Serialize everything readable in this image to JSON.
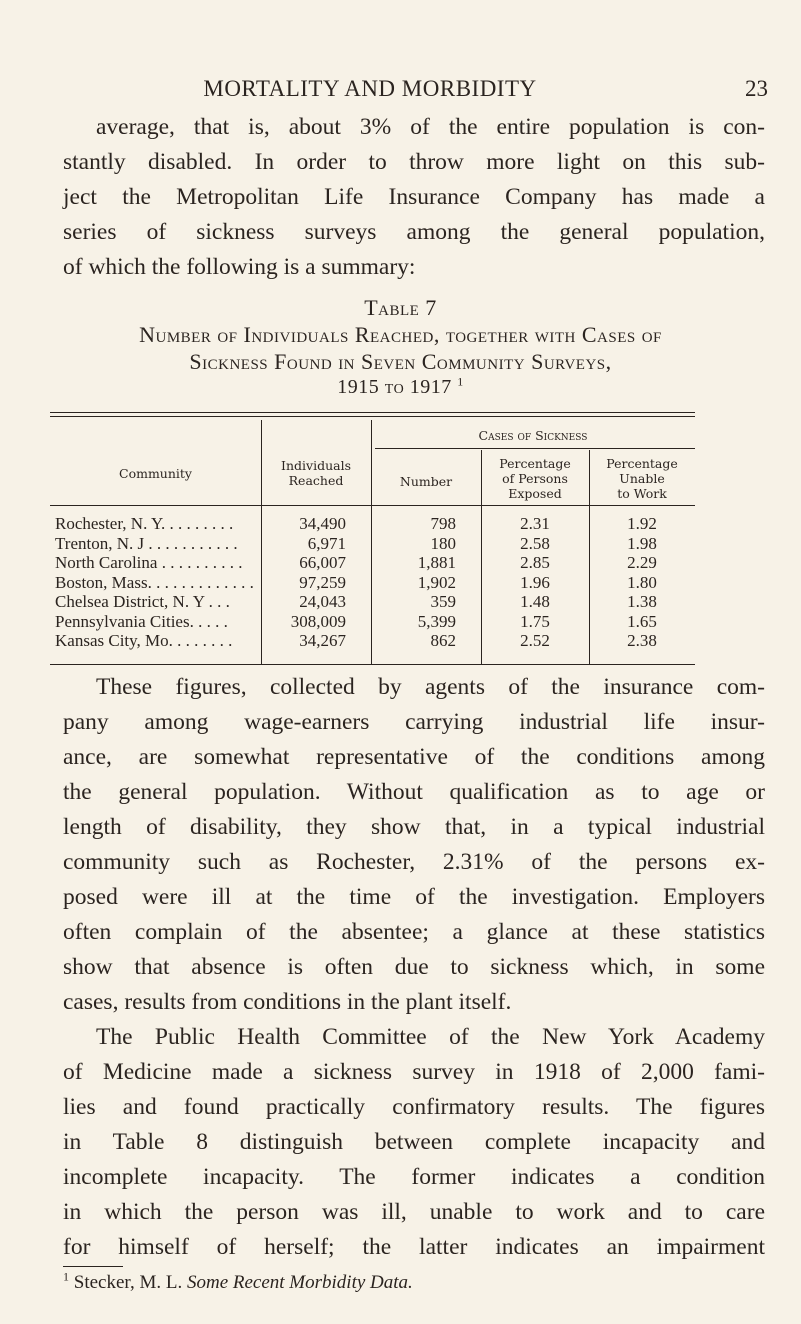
{
  "header": {
    "running_title": "MORTALITY AND MORBIDITY",
    "page_number": "23"
  },
  "intro_lines": [
    "average, that is, about 3% of the entire population is con-",
    "stantly disabled. In order to throw more light on this sub-",
    "ject the Metropolitan Life Insurance Company has made a",
    "series of sickness surveys among the general population,",
    "of which the following is a summary:"
  ],
  "table": {
    "label": "Table 7",
    "title_lines": [
      "Number of Individuals Reached, together with Cases of",
      "Sickness Found in Seven Community Surveys,",
      "1915 to 1917"
    ],
    "footnote_ref": "1",
    "headers": {
      "community": "Community",
      "individuals": [
        "Individuals",
        "Reached"
      ],
      "cases_group": "Cases of Sickness",
      "number": "Number",
      "pct_exposed": [
        "Percentage",
        "of Persons",
        "Exposed"
      ],
      "pct_unable": [
        "Percentage",
        "Unable",
        "to Work"
      ]
    },
    "rows": [
      {
        "community": "Rochester, N. Y. . . . . . . . .",
        "individuals": "34,490",
        "number": "798",
        "pct_exposed": "2.31",
        "pct_unable": "1.92"
      },
      {
        "community": "Trenton, N. J . . . . . . . . . . .",
        "individuals": "6,971",
        "number": "180",
        "pct_exposed": "2.58",
        "pct_unable": "1.98"
      },
      {
        "community": "North Carolina . . . . . . . . . .",
        "individuals": "66,007",
        "number": "1,881",
        "pct_exposed": "2.85",
        "pct_unable": "2.29"
      },
      {
        "community": "Boston, Mass. . . . . . . . . . . . .",
        "individuals": "97,259",
        "number": "1,902",
        "pct_exposed": "1.96",
        "pct_unable": "1.80"
      },
      {
        "community": "Chelsea District, N. Y . . .",
        "individuals": "24,043",
        "number": "359",
        "pct_exposed": "1.48",
        "pct_unable": "1.38"
      },
      {
        "community": "Pennsylvania Cities. . . . .",
        "individuals": "308,009",
        "number": "5,399",
        "pct_exposed": "1.75",
        "pct_unable": "1.65"
      },
      {
        "community": "Kansas City, Mo. . . . . . . .",
        "individuals": "34,267",
        "number": "862",
        "pct_exposed": "2.52",
        "pct_unable": "2.38"
      }
    ]
  },
  "body_lines": [
    "These figures, collected by agents of the insurance com-",
    "pany among wage-earners carrying industrial life insur-",
    "ance, are somewhat representative of the conditions among",
    "the general population. Without qualification as to age or",
    "length of disability, they show that, in a typical industrial",
    "community such as Rochester, 2.31% of the persons ex-",
    "posed were ill at the time of the investigation. Employers",
    "often complain of the absentee; a glance at these statistics",
    "show that absence is often due to sickness which, in some",
    "cases, results from conditions in the plant itself.",
    "The Public Health Committee of the New York Academy",
    "of Medicine made a sickness survey in 1918 of 2,000 fami-",
    "lies and found practically confirmatory results. The figures",
    "in Table 8 distinguish between complete incapacity and",
    "incomplete incapacity. The former indicates a condition",
    "in which the person was ill, unable to work and to care",
    "for himself of herself; the latter indicates an impairment"
  ],
  "footnote": {
    "marker": "1",
    "text": "Stecker, M. L. Some Recent Morbidity Data."
  }
}
